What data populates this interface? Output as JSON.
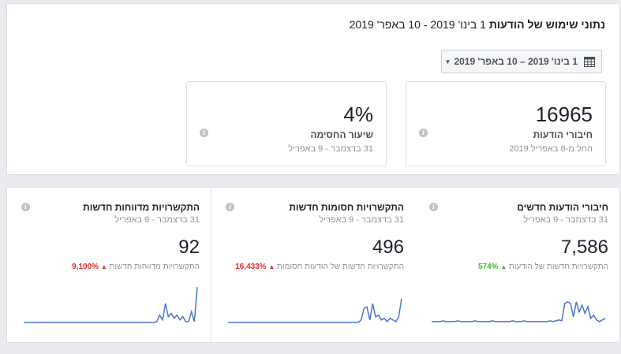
{
  "header": {
    "title_bold": "נתוני שימוש של הודעות",
    "title_range": "1 בינו' 2019 - 10 באפר' 2019"
  },
  "date_picker": {
    "label": "1 בינו' 2019 – 10 באפר' 2019",
    "calendar_icon": "calendar-icon",
    "caret_icon": "caret-down-icon"
  },
  "summary": [
    {
      "value": "16965",
      "label": "חיבורי הודעות",
      "sub": "החל מ-8 באפריל 2019"
    },
    {
      "value": "4%",
      "label": "שיעור החסימה",
      "sub": "31 בדצמבר - 9 באפריל"
    }
  ],
  "metrics": [
    {
      "title": "חיבורי הודעות חדשים",
      "range": "31 בדצמבר - 9 באפריל",
      "value": "7,586",
      "delta_label": "התקשרויות חדשות של הודעות",
      "delta_pct": "574%",
      "delta_dir": "up-green",
      "series": [
        2,
        2,
        2,
        2,
        3,
        2,
        2,
        2,
        2,
        3,
        2,
        2,
        2,
        2,
        2,
        3,
        2,
        2,
        2,
        2,
        2,
        3,
        2,
        2,
        2,
        2,
        2,
        2,
        3,
        2,
        2,
        2,
        3,
        2,
        2,
        2,
        2,
        2,
        2,
        2,
        2,
        3,
        2,
        3,
        4,
        3,
        24,
        26,
        24,
        8,
        26,
        14,
        22,
        12,
        20,
        6,
        10,
        4,
        2,
        4,
        6
      ]
    },
    {
      "title": "התקשרויות חסומות חדשות",
      "range": "31 בדצמבר - 9 באפריל",
      "value": "496",
      "delta_label": "התקשרויות חדשות של הודעות חסומות",
      "delta_pct": "16,433%",
      "delta_dir": "up-red",
      "series": [
        1,
        1,
        1,
        1,
        1,
        1,
        1,
        1,
        1,
        1,
        1,
        1,
        1,
        1,
        1,
        1,
        1,
        1,
        1,
        1,
        1,
        1,
        1,
        1,
        1,
        1,
        1,
        1,
        1,
        1,
        1,
        1,
        1,
        1,
        1,
        1,
        1,
        1,
        1,
        1,
        1,
        1,
        1,
        1,
        1,
        1,
        4,
        18,
        20,
        4,
        24,
        8,
        10,
        4,
        6,
        2,
        6,
        4,
        2,
        8,
        30
      ]
    },
    {
      "title": "התקשרויות מדווחות חדשות",
      "range": "31 בדצמבר - 9 באפריל",
      "value": "92",
      "delta_label": "התקשרויות מדווחות חדשות",
      "delta_pct": "9,100%",
      "delta_dir": "up-red",
      "series": [
        1,
        1,
        1,
        1,
        1,
        1,
        1,
        1,
        1,
        1,
        1,
        1,
        1,
        1,
        1,
        1,
        1,
        1,
        1,
        1,
        1,
        1,
        1,
        1,
        1,
        1,
        1,
        1,
        1,
        1,
        1,
        1,
        1,
        1,
        1,
        1,
        1,
        1,
        1,
        1,
        1,
        1,
        1,
        1,
        1,
        1,
        2,
        10,
        4,
        24,
        8,
        12,
        6,
        10,
        4,
        8,
        2,
        2,
        14,
        2,
        44
      ]
    }
  ],
  "colors": {
    "line": "#4a76c9",
    "red": "#e02727",
    "green": "#42b72a"
  },
  "info_icon": "info-icon"
}
